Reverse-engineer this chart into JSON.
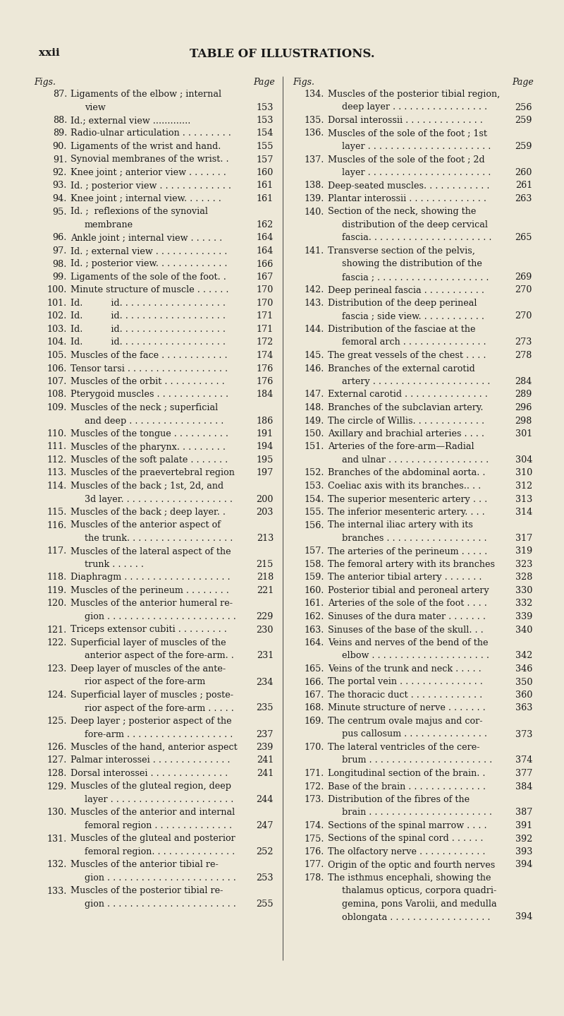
{
  "bg_color": "#ede8d8",
  "page_label": "xxii",
  "title": "TABLE OF ILLUSTRATIONS.",
  "left_entries": [
    [
      "87.",
      "Ligaments of the elbow ; internal",
      "view",
      "153"
    ],
    [
      "88.",
      "Id.; external view .............",
      "",
      "153"
    ],
    [
      "89.",
      "Radio-ulnar articulation . . . . . . . . .",
      "",
      "154"
    ],
    [
      "90.",
      "Ligaments of the wrist and hand.",
      "",
      "155"
    ],
    [
      "91.",
      "Synovial membranes of the wrist. .",
      "",
      "157"
    ],
    [
      "92.",
      "Knee joint ; anterior view . . . . . . .",
      "",
      "160"
    ],
    [
      "93.",
      "Id. ; posterior view . . . . . . . . . . . . .",
      "",
      "161"
    ],
    [
      "94.",
      "Knee joint ; internal view. . . . . . .",
      "",
      "161"
    ],
    [
      "95.",
      "Id. ;  reflexions of the synovial",
      "membrane",
      "162"
    ],
    [
      "96.",
      "Ankle joint ; internal view . . . . . .",
      "",
      "164"
    ],
    [
      "97.",
      "Id. ; external view . . . . . . . . . . . . .",
      "",
      "164"
    ],
    [
      "98.",
      "Id. ; posterior view. . . . . . . . . . . . .",
      "",
      "166"
    ],
    [
      "99.",
      "Ligaments of the sole of the foot. .",
      "",
      "167"
    ],
    [
      "100.",
      "Minute structure of muscle . . . . . .",
      "",
      "170"
    ],
    [
      "101.",
      "Id.          id. . . . . . . . . . . . . . . . . . .",
      "",
      "170"
    ],
    [
      "102.",
      "Id.          id. . . . . . . . . . . . . . . . . . .",
      "",
      "171"
    ],
    [
      "103.",
      "Id.          id. . . . . . . . . . . . . . . . . . .",
      "",
      "171"
    ],
    [
      "104.",
      "Id.          id. . . . . . . . . . . . . . . . . . .",
      "",
      "172"
    ],
    [
      "105.",
      "Muscles of the face . . . . . . . . . . . .",
      "",
      "174"
    ],
    [
      "106.",
      "Tensor tarsi . . . . . . . . . . . . . . . . . .",
      "",
      "176"
    ],
    [
      "107.",
      "Muscles of the orbit . . . . . . . . . . .",
      "",
      "176"
    ],
    [
      "108.",
      "Pterygoid muscles . . . . . . . . . . . . .",
      "",
      "184"
    ],
    [
      "109.",
      "Muscles of the neck ; superficial",
      "and deep . . . . . . . . . . . . . . . . .",
      "186"
    ],
    [
      "110.",
      "Muscles of the tongue . . . . . . . . . .",
      "",
      "191"
    ],
    [
      "111.",
      "Muscles of the pharynx. . . . . . . . .",
      "",
      "194"
    ],
    [
      "112.",
      "Muscles of the soft palate . . . . . . .",
      "",
      "195"
    ],
    [
      "113.",
      "Muscles of the praevertebral region",
      "",
      "197"
    ],
    [
      "114.",
      "Muscles of the back ; 1st, 2d, and",
      "3d layer. . . . . . . . . . . . . . . . . . . .",
      "200"
    ],
    [
      "115.",
      "Muscles of the back ; deep layer. .",
      "",
      "203"
    ],
    [
      "116.",
      "Muscles of the anterior aspect of",
      "the trunk. . . . . . . . . . . . . . . . . . .",
      "213"
    ],
    [
      "117.",
      "Muscles of the lateral aspect of the",
      "trunk . . . . . .",
      "215"
    ],
    [
      "118.",
      "Diaphragm . . . . . . . . . . . . . . . . . . .",
      "",
      "218"
    ],
    [
      "119.",
      "Muscles of the perineum . . . . . . . .",
      "",
      "221"
    ],
    [
      "120.",
      "Muscles of the anterior humeral re-",
      "gion . . . . . . . . . . . . . . . . . . . . . . .",
      "229"
    ],
    [
      "121.",
      "Triceps extensor cubiti . . . . . . . . .",
      "",
      "230"
    ],
    [
      "122.",
      "Superficial layer of muscles of the",
      "anterior aspect of the fore-arm. .",
      "231"
    ],
    [
      "123.",
      "Deep layer of muscles of the ante-",
      "rior aspect of the fore-arm",
      "234"
    ],
    [
      "124.",
      "Superficial layer of muscles ; poste-",
      "rior aspect of the fore-arm . . . . .",
      "235"
    ],
    [
      "125.",
      "Deep layer ; posterior aspect of the",
      "fore-arm . . . . . . . . . . . . . . . . . . .",
      "237"
    ],
    [
      "126.",
      "Muscles of the hand, anterior aspect",
      "",
      "239"
    ],
    [
      "127.",
      "Palmar interossei . . . . . . . . . . . . . .",
      "",
      "241"
    ],
    [
      "128.",
      "Dorsal interossei . . . . . . . . . . . . . .",
      "",
      "241"
    ],
    [
      "129.",
      "Muscles of the gluteal region, deep",
      "layer . . . . . . . . . . . . . . . . . . . . . .",
      "244"
    ],
    [
      "130.",
      "Muscles of the anterior and internal",
      "femoral region . . . . . . . . . . . . . .",
      "247"
    ],
    [
      "131.",
      "Muscles of the gluteal and posterior",
      "femoral region. . . . . . . . . . . . . . .",
      "252"
    ],
    [
      "132.",
      "Muscles of the anterior tibial re-",
      "gion . . . . . . . . . . . . . . . . . . . . . . .",
      "253"
    ],
    [
      "133.",
      "Muscles of the posterior tibial re-",
      "gion . . . . . . . . . . . . . . . . . . . . . . .",
      "255"
    ]
  ],
  "right_entries": [
    [
      "134.",
      "Muscles of the posterior tibial region,",
      "deep layer . . . . . . . . . . . . . . . . .",
      "256"
    ],
    [
      "135.",
      "Dorsal interossii . . . . . . . . . . . . . .",
      "",
      "259"
    ],
    [
      "136.",
      "Muscles of the sole of the foot ; 1st",
      "layer . . . . . . . . . . . . . . . . . . . . . .",
      "259"
    ],
    [
      "137.",
      "Muscles of the sole of the foot ; 2d",
      "layer . . . . . . . . . . . . . . . . . . . . . .",
      "260"
    ],
    [
      "138.",
      "Deep-seated muscles. . . . . . . . . . . .",
      "",
      "261"
    ],
    [
      "139.",
      "Plantar interossii . . . . . . . . . . . . . .",
      "",
      "263"
    ],
    [
      "140.",
      "Section of the neck, showing the",
      "distribution of the deep cervical",
      "fascia. . . . . . . . . . . . . . . . . . . . . .",
      "265"
    ],
    [
      "141.",
      "Transverse section of the pelvis,",
      "showing the distribution of the",
      "fascia ; . . . . . . . . . . . . . . . . . . . .",
      "269"
    ],
    [
      "142.",
      "Deep perineal fascia . . . . . . . . . . .",
      "",
      "270"
    ],
    [
      "143.",
      "Distribution of the deep perineal",
      "fascia ; side view. . . . . . . . . . . .",
      "270"
    ],
    [
      "144.",
      "Distribution of the fasciae at the",
      "femoral arch . . . . . . . . . . . . . . .",
      "273"
    ],
    [
      "145.",
      "The great vessels of the chest . . . .",
      "",
      "278"
    ],
    [
      "146.",
      "Branches of the external carotid",
      "artery . . . . . . . . . . . . . . . . . . . . .",
      "284"
    ],
    [
      "147.",
      "External carotid . . . . . . . . . . . . . . .",
      "",
      "289"
    ],
    [
      "148.",
      "Branches of the subclavian artery.",
      "",
      "296"
    ],
    [
      "149.",
      "The circle of Willis. . . . . . . . . . . . .",
      "",
      "298"
    ],
    [
      "150.",
      "Axillary and brachial arteries . . . .",
      "",
      "301"
    ],
    [
      "151.",
      "Arteries of the fore-arm—Radial",
      "and ulnar . . . . . . . . . . . . . . . . . .",
      "304"
    ],
    [
      "152.",
      "Branches of the abdominal aorta. .",
      "",
      "310"
    ],
    [
      "153.",
      "Coeliac axis with its branches.. . .",
      "",
      "312"
    ],
    [
      "154.",
      "The superior mesenteric artery . . .",
      "",
      "313"
    ],
    [
      "155.",
      "The inferior mesenteric artery. . . .",
      "",
      "314"
    ],
    [
      "156.",
      "The internal iliac artery with its",
      "branches . . . . . . . . . . . . . . . . . .",
      "317"
    ],
    [
      "157.",
      "The arteries of the perineum . . . . .",
      "",
      "319"
    ],
    [
      "158.",
      "The femoral artery with its branches",
      "",
      "323"
    ],
    [
      "159.",
      "The anterior tibial artery . . . . . . .",
      "",
      "328"
    ],
    [
      "160.",
      "Posterior tibial and peroneal artery",
      "",
      "330"
    ],
    [
      "161.",
      "Arteries of the sole of the foot . . . .",
      "",
      "332"
    ],
    [
      "162.",
      "Sinuses of the dura mater . . . . . . .",
      "",
      "339"
    ],
    [
      "163.",
      "Sinuses of the base of the skull. . .",
      "",
      "340"
    ],
    [
      "164.",
      "Veins and nerves of the bend of the",
      "elbow . . . . . . . . . . . . . . . . . . . . .",
      "342"
    ],
    [
      "165.",
      "Veins of the trunk and neck . . . . .",
      "",
      "346"
    ],
    [
      "166.",
      "The portal vein . . . . . . . . . . . . . . .",
      "",
      "350"
    ],
    [
      "167.",
      "The thoracic duct . . . . . . . . . . . . .",
      "",
      "360"
    ],
    [
      "168.",
      "Minute structure of nerve . . . . . . .",
      "",
      "363"
    ],
    [
      "169.",
      "The centrum ovale majus and cor-",
      "pus callosum . . . . . . . . . . . . . . .",
      "373"
    ],
    [
      "170.",
      "The lateral ventricles of the cere-",
      "brum . . . . . . . . . . . . . . . . . . . . . .",
      "374"
    ],
    [
      "171.",
      "Longitudinal section of the brain. .",
      "",
      "377"
    ],
    [
      "172.",
      "Base of the brain . . . . . . . . . . . . . .",
      "",
      "384"
    ],
    [
      "173.",
      "Distribution of the fibres of the",
      "brain . . . . . . . . . . . . . . . . . . . . . .",
      "387"
    ],
    [
      "174.",
      "Sections of the spinal marrow . . . .",
      "",
      "391"
    ],
    [
      "175.",
      "Sections of the spinal cord . . . . . .",
      "",
      "392"
    ],
    [
      "176.",
      "The olfactory nerve . . . . . . . . . . . .",
      "",
      "393"
    ],
    [
      "177.",
      "Origin of the optic and fourth nerves",
      "",
      "394"
    ],
    [
      "178.",
      "The isthmus encephali, showing the",
      "thalamus opticus, corpora quadri-",
      "gemina, pons Varolii, and medulla",
      "oblongata . . . . . . . . . . . . . . . . . .",
      "394"
    ]
  ]
}
